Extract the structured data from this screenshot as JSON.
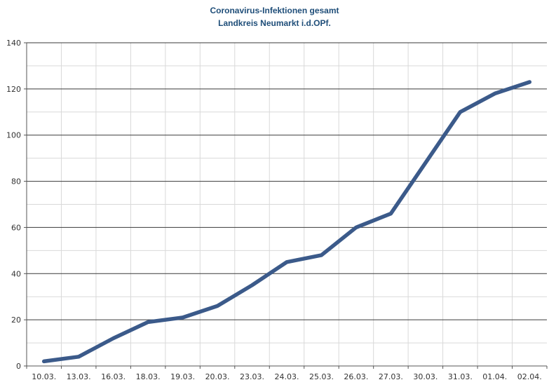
{
  "chart_data": {
    "type": "line",
    "title": "Coronavirus-Infektionen gesamt",
    "subtitle": "Landkreis Neumarkt i.d.OPf.",
    "categories": [
      "10.03.",
      "13.03.",
      "16.03.",
      "18.03.",
      "19.03.",
      "20.03.",
      "23.03.",
      "24.03.",
      "25.03.",
      "26.03.",
      "27.03.",
      "30.03.",
      "31.03.",
      "01.04.",
      "02.04."
    ],
    "series": [
      {
        "values": [
          2,
          4,
          12,
          19,
          21,
          26,
          35,
          45,
          48,
          60,
          66,
          88,
          110,
          118,
          123
        ]
      }
    ],
    "ylim": [
      0,
      140
    ],
    "yticks": [
      0,
      20,
      40,
      60,
      80,
      100,
      120,
      140
    ],
    "grid": "horizontal-major",
    "legend": "none",
    "colors": {
      "line": "#3b5a8a",
      "major_grid": "#3a3a3a",
      "minor_grid": "#d9d9d9",
      "title": "#1f4e79"
    }
  }
}
